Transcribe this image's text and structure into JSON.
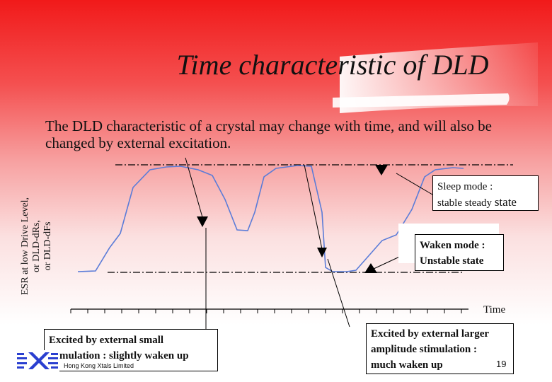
{
  "slide": {
    "title": "Time characteristic of DLD",
    "subtitle": "The DLD characteristic of a crystal may change with time, and will also be changed by external excitation.",
    "ylabel_lines": [
      "ESR at low Drive Level,",
      "or DLD-dRs,",
      "or DLD-dFs"
    ],
    "xlabel": "Time",
    "sleep_box": {
      "line1": "Sleep mode :",
      "line2a": "stable steady ",
      "line2b": "state"
    },
    "waken_box": {
      "line1": "Waken mode :",
      "line2": "Unstable state"
    },
    "small_box": {
      "line1": "Excited by external small",
      "line2": "stimulation : slightly waken up"
    },
    "large_box": {
      "line1": "Excited by external larger",
      "line2": "amplitude stimulation :",
      "line3": "much waken up"
    },
    "company": "Hong Kong Xtals Limited",
    "page_number": "19"
  },
  "colors": {
    "curve": "#5b7cd8",
    "bg_top": "#f11a1a",
    "logo": "#2a3fd0"
  },
  "icons": {
    "logo": "hkx-logo",
    "markers": "triangle-down-marker"
  }
}
